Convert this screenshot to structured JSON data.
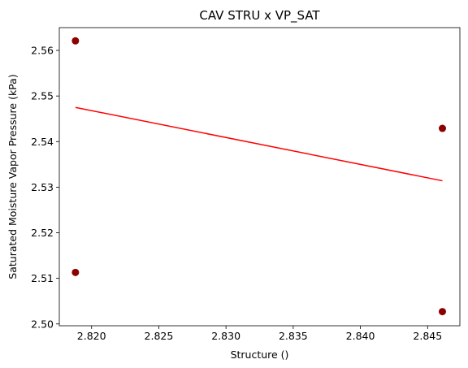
{
  "chart_data": {
    "type": "scatter",
    "title": "CAV STRU x VP_SAT",
    "xlabel": "Structure ()",
    "ylabel": "Saturated Moisture Vapor Pressure (kPa)",
    "xlim": [
      2.8176,
      2.8474
    ],
    "ylim": [
      2.4996,
      2.565
    ],
    "xticks": [
      2.82,
      2.825,
      2.83,
      2.835,
      2.84,
      2.845
    ],
    "xtick_labels": [
      "2.820",
      "2.825",
      "2.830",
      "2.835",
      "2.840",
      "2.845"
    ],
    "yticks": [
      2.5,
      2.51,
      2.52,
      2.53,
      2.54,
      2.55,
      2.56
    ],
    "ytick_labels": [
      "2.50",
      "2.51",
      "2.52",
      "2.53",
      "2.54",
      "2.55",
      "2.56"
    ],
    "grid": false,
    "legend": "none",
    "series": [
      {
        "marker_color": "#8b0000",
        "points": [
          {
            "x": 2.8188,
            "y": 2.5621
          },
          {
            "x": 2.8188,
            "y": 2.5113
          },
          {
            "x": 2.8461,
            "y": 2.5429
          },
          {
            "x": 2.8461,
            "y": 2.5027
          }
        ]
      }
    ],
    "trendline": {
      "color": "#ff0000",
      "points": [
        {
          "x": 2.8188,
          "y": 2.5475
        },
        {
          "x": 2.8461,
          "y": 2.5314
        }
      ]
    }
  }
}
